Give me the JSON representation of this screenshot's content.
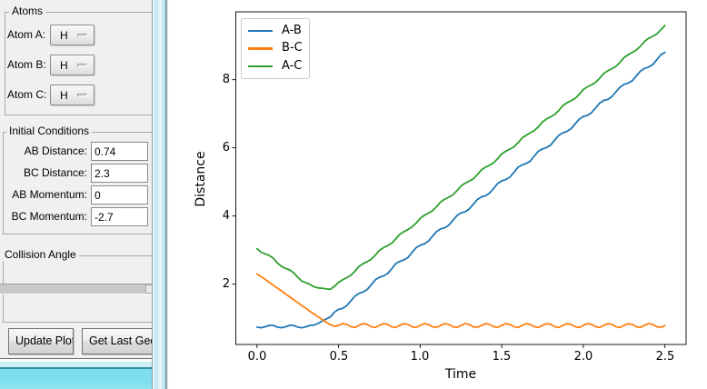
{
  "panel": {
    "atoms_frame": {
      "title": "Atoms",
      "rows": [
        {
          "label": "Atom A:",
          "value": "H"
        },
        {
          "label": "Atom B:",
          "value": "H"
        },
        {
          "label": "Atom C:",
          "value": "H"
        }
      ]
    },
    "initial_conditions_frame": {
      "title": "Initial Conditions",
      "fields": [
        {
          "label": "AB Distance:",
          "value": "0.74"
        },
        {
          "label": "BC Distance:",
          "value": "2.3"
        },
        {
          "label": "AB Momentum:",
          "value": "0"
        },
        {
          "label": "BC Momentum:",
          "value": "-2.7"
        }
      ]
    },
    "collision_angle_frame": {
      "title": "Collision Angle"
    },
    "buttons": [
      {
        "label": "Update Plot"
      },
      {
        "label": "Get Last Geom"
      }
    ]
  },
  "chart_data": {
    "type": "line",
    "title": "",
    "xlabel": "Time",
    "ylabel": "Distance",
    "xlim": [
      -0.13,
      2.63
    ],
    "ylim": [
      0.23,
      9.99
    ],
    "xticks": [
      0,
      0.5,
      1.0,
      1.5,
      2.0,
      2.5
    ],
    "xtick_labels": [
      "0.0",
      "0.5",
      "1.0",
      "1.5",
      "2.0",
      "2.5"
    ],
    "yticks": [
      2,
      4,
      6,
      8
    ],
    "ytick_labels": [
      "2",
      "4",
      "6",
      "8"
    ],
    "grid": false,
    "legend_position": "upper left",
    "t": {
      "start": 0,
      "step": 0.025,
      "count": 101
    },
    "series": [
      {
        "name": "A-B",
        "color": "#1f77b4",
        "values": [
          0.74,
          0.72,
          0.75,
          0.79,
          0.79,
          0.74,
          0.72,
          0.75,
          0.79,
          0.79,
          0.74,
          0.72,
          0.75,
          0.79,
          0.8,
          0.85,
          0.92,
          0.98,
          1.04,
          1.18,
          1.26,
          1.29,
          1.37,
          1.51,
          1.65,
          1.73,
          1.77,
          1.84,
          1.98,
          2.13,
          2.2,
          2.24,
          2.31,
          2.45,
          2.6,
          2.67,
          2.71,
          2.78,
          2.93,
          3.07,
          3.14,
          3.18,
          3.26,
          3.4,
          3.54,
          3.62,
          3.65,
          3.73,
          3.87,
          4.01,
          4.09,
          4.12,
          4.2,
          4.34,
          4.48,
          4.56,
          4.59,
          4.67,
          4.81,
          4.95,
          5.03,
          5.07,
          5.14,
          5.28,
          5.43,
          5.5,
          5.54,
          5.61,
          5.76,
          5.9,
          5.97,
          6.01,
          6.08,
          6.23,
          6.37,
          6.44,
          6.48,
          6.56,
          6.7,
          6.84,
          6.92,
          6.95,
          7.03,
          7.17,
          7.31,
          7.39,
          7.42,
          7.5,
          7.64,
          7.78,
          7.86,
          7.9,
          7.97,
          8.11,
          8.25,
          8.33,
          8.37,
          8.44,
          8.58,
          8.73,
          8.8
        ]
      },
      {
        "name": "B-C",
        "color": "#ff7f0e",
        "values": [
          2.3,
          2.22,
          2.14,
          2.05,
          1.97,
          1.88,
          1.8,
          1.71,
          1.63,
          1.54,
          1.46,
          1.37,
          1.29,
          1.2,
          1.12,
          1.04,
          0.96,
          0.88,
          0.81,
          0.76,
          0.79,
          0.84,
          0.82,
          0.75,
          0.73,
          0.79,
          0.84,
          0.82,
          0.75,
          0.73,
          0.79,
          0.84,
          0.82,
          0.75,
          0.73,
          0.79,
          0.84,
          0.82,
          0.75,
          0.73,
          0.79,
          0.84,
          0.82,
          0.75,
          0.73,
          0.79,
          0.84,
          0.82,
          0.75,
          0.73,
          0.79,
          0.84,
          0.82,
          0.75,
          0.73,
          0.79,
          0.84,
          0.82,
          0.75,
          0.73,
          0.79,
          0.84,
          0.82,
          0.75,
          0.73,
          0.79,
          0.84,
          0.82,
          0.75,
          0.73,
          0.79,
          0.84,
          0.82,
          0.75,
          0.73,
          0.79,
          0.84,
          0.82,
          0.75,
          0.73,
          0.79,
          0.84,
          0.82,
          0.75,
          0.73,
          0.79,
          0.84,
          0.82,
          0.75,
          0.73,
          0.79,
          0.84,
          0.82,
          0.75,
          0.73,
          0.79,
          0.84,
          0.82,
          0.75,
          0.73,
          0.79
        ]
      },
      {
        "name": "A-C",
        "color": "#2ca02c",
        "values": [
          3.04,
          2.94,
          2.89,
          2.84,
          2.76,
          2.62,
          2.52,
          2.46,
          2.42,
          2.33,
          2.2,
          2.09,
          2.04,
          1.99,
          1.92,
          1.89,
          1.88,
          1.86,
          1.85,
          1.94,
          2.05,
          2.13,
          2.19,
          2.26,
          2.38,
          2.52,
          2.6,
          2.66,
          2.73,
          2.85,
          2.99,
          3.07,
          3.13,
          3.2,
          3.32,
          3.46,
          3.54,
          3.6,
          3.68,
          3.79,
          3.93,
          4.02,
          4.08,
          4.15,
          4.27,
          4.41,
          4.49,
          4.55,
          4.62,
          4.74,
          4.88,
          4.96,
          5.02,
          5.09,
          5.21,
          5.35,
          5.43,
          5.49,
          5.56,
          5.68,
          5.82,
          5.9,
          5.96,
          6.03,
          6.15,
          6.29,
          6.37,
          6.44,
          6.51,
          6.62,
          6.76,
          6.85,
          6.91,
          6.98,
          7.1,
          7.24,
          7.32,
          7.38,
          7.45,
          7.57,
          7.71,
          7.79,
          7.85,
          7.92,
          8.04,
          8.18,
          8.26,
          8.32,
          8.39,
          8.51,
          8.65,
          8.73,
          8.8,
          8.87,
          8.98,
          9.12,
          9.21,
          9.27,
          9.34,
          9.46,
          9.59
        ]
      }
    ]
  }
}
